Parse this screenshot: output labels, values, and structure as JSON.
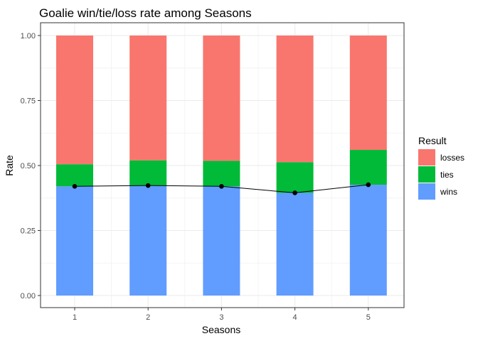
{
  "chart_data": {
    "type": "bar",
    "stacked": true,
    "title": "Goalie win/tie/loss rate among Seasons",
    "xlabel": "Seasons",
    "ylabel": "Rate",
    "categories": [
      "1",
      "2",
      "3",
      "4",
      "5"
    ],
    "ylim": [
      0,
      1
    ],
    "yticks": [
      "0.00",
      "0.25",
      "0.50",
      "0.75",
      "1.00"
    ],
    "grid": true,
    "legend": {
      "title": "Result",
      "position": "right",
      "entries": [
        {
          "label": "losses",
          "color": "#F8766D"
        },
        {
          "label": "ties",
          "color": "#00BA38"
        },
        {
          "label": "wins",
          "color": "#619CFF"
        }
      ]
    },
    "series": [
      {
        "name": "wins",
        "color": "#619CFF",
        "values": [
          0.42,
          0.423,
          0.42,
          0.395,
          0.426
        ]
      },
      {
        "name": "ties",
        "color": "#00BA38",
        "values": [
          0.085,
          0.097,
          0.098,
          0.118,
          0.134
        ]
      },
      {
        "name": "losses",
        "color": "#F8766D",
        "values": [
          0.495,
          0.48,
          0.482,
          0.487,
          0.44
        ]
      }
    ],
    "line": {
      "color": "#000000",
      "values": [
        0.42,
        0.423,
        0.42,
        0.395,
        0.426
      ]
    }
  }
}
